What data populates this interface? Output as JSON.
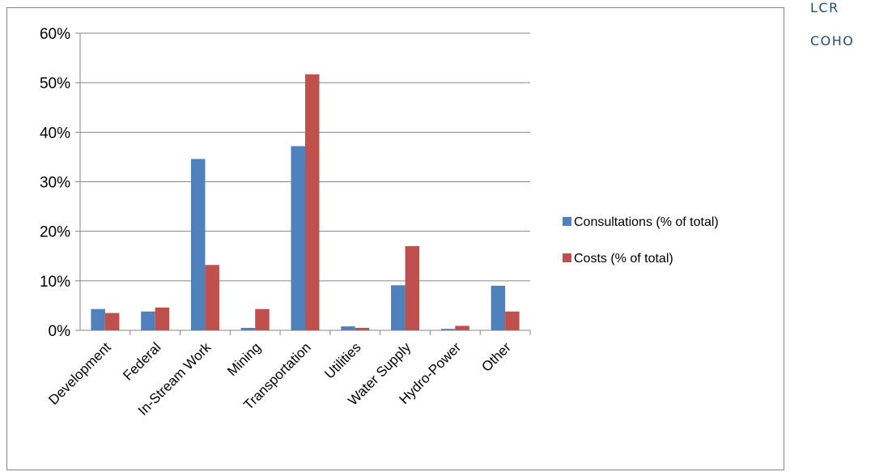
{
  "side_labels": [
    "LCR",
    "COHO"
  ],
  "colors": {
    "series1": "#4f81bd",
    "series2": "#c0504d",
    "grid": "#868686",
    "side_text": "#1f4e79"
  },
  "chart_data": {
    "type": "bar",
    "categories": [
      "Development",
      "Federal",
      "In-Stream Work",
      "Mining",
      "Transportation",
      "Utilities",
      "Water Supply",
      "Hydro-Power",
      "Other"
    ],
    "series": [
      {
        "name": "Consultations (% of total)",
        "values": [
          4.3,
          3.8,
          34.6,
          0.5,
          37.2,
          0.8,
          9.1,
          0.3,
          9.0
        ]
      },
      {
        "name": "Costs (% of total)",
        "values": [
          3.5,
          4.6,
          13.2,
          4.3,
          51.7,
          0.5,
          17.0,
          0.9,
          3.8
        ]
      }
    ],
    "yticks": [
      "0%",
      "10%",
      "20%",
      "30%",
      "40%",
      "50%",
      "60%"
    ],
    "ylim": [
      0,
      60
    ],
    "grid": true,
    "legend_position": "right",
    "title": "",
    "xlabel": "",
    "ylabel": ""
  }
}
